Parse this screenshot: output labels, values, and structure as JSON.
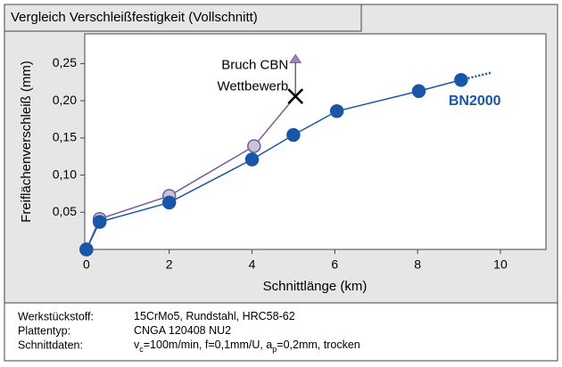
{
  "chart_data": {
    "type": "line",
    "title": "Vergleich Verschleißfestigkeit (Vollschnitt)",
    "x_label": "Schnittlänge (km)",
    "y_label": "Freiflächenverschleiß (mm)",
    "xlim": [
      -0.04,
      11.1
    ],
    "ylim": [
      0,
      0.29
    ],
    "xticks": [
      0,
      2,
      4,
      6,
      8,
      10
    ],
    "yticks": [
      {
        "value": 0.05,
        "label": "0,05"
      },
      {
        "value": 0.1,
        "label": "0,10"
      },
      {
        "value": 0.15,
        "label": "0,15"
      },
      {
        "value": 0.2,
        "label": "0,20"
      },
      {
        "value": 0.25,
        "label": "0,25"
      }
    ],
    "grid": false,
    "series": [
      {
        "name": "BN2000",
        "color": "#1a56a8",
        "marker_fill": "#1a56a8",
        "x": [
          0,
          0.32,
          2,
          4,
          5,
          6.05,
          8.03,
          9.05
        ],
        "values": [
          0,
          0.037,
          0.063,
          0.121,
          0.154,
          0.186,
          0.213,
          0.228
        ],
        "extension": {
          "x": 9.8,
          "y": 0.238
        }
      },
      {
        "name": "Wettbewerb",
        "color": "#7a5a9a",
        "marker_fill": "#c9c3d9",
        "x": [
          0,
          0.32,
          2,
          4.05
        ],
        "values": [
          0,
          0.041,
          0.072,
          0.139
        ],
        "break_point": {
          "x": 5.05,
          "y": 0.206,
          "arrow_to": 0.262
        }
      }
    ],
    "annotation": "Bruch CBN",
    "footer": {
      "rows": [
        {
          "label": "Werkstückstoff:",
          "value": [
            "15CrMo5, Rundstahl, HRC58-62"
          ]
        },
        {
          "label": "Plattentyp:",
          "value": [
            "CNGA 120408 NU2"
          ]
        },
        {
          "label": "Schnittdaten:",
          "value": [
            "v",
            "c",
            "=100m/min, f=0,1mm/U, a",
            "p",
            "=0,2mm, trocken"
          ]
        }
      ]
    }
  }
}
